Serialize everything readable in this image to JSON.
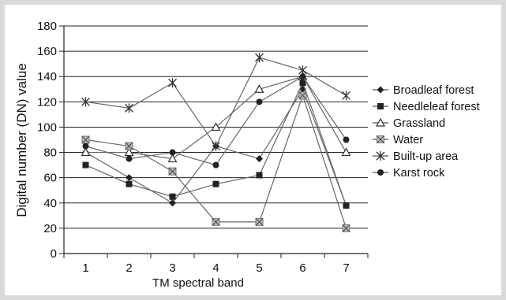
{
  "chart_data": {
    "type": "line",
    "title": "",
    "xlabel": "TM spectral band",
    "ylabel": "Digital number (DN) value",
    "x": [
      1,
      2,
      3,
      4,
      5,
      6,
      7
    ],
    "x_ticks": [
      "1",
      "2",
      "3",
      "4",
      "5",
      "6",
      "7"
    ],
    "ylim": [
      0,
      180
    ],
    "y_ticks": [
      "0",
      "20",
      "40",
      "60",
      "80",
      "100",
      "120",
      "140",
      "160",
      "180"
    ],
    "grid": "horizontal",
    "legend_position": "right",
    "series": [
      {
        "name": "Broadleaf forest",
        "marker": "diamond",
        "values": [
          80,
          60,
          40,
          85,
          75,
          130,
          38
        ]
      },
      {
        "name": "Needleleaf forest",
        "marker": "square",
        "values": [
          70,
          55,
          45,
          55,
          62,
          135,
          38
        ]
      },
      {
        "name": "Grassland",
        "marker": "triangle",
        "values": [
          80,
          80,
          75,
          100,
          130,
          140,
          80
        ]
      },
      {
        "name": "Water",
        "marker": "x-square",
        "values": [
          90,
          85,
          65,
          25,
          25,
          125,
          20
        ]
      },
      {
        "name": "Built-up area",
        "marker": "asterisk",
        "values": [
          120,
          115,
          135,
          85,
          155,
          145,
          125
        ]
      },
      {
        "name": "Karst rock",
        "marker": "circle",
        "values": [
          85,
          75,
          80,
          70,
          120,
          140,
          90
        ]
      }
    ]
  }
}
